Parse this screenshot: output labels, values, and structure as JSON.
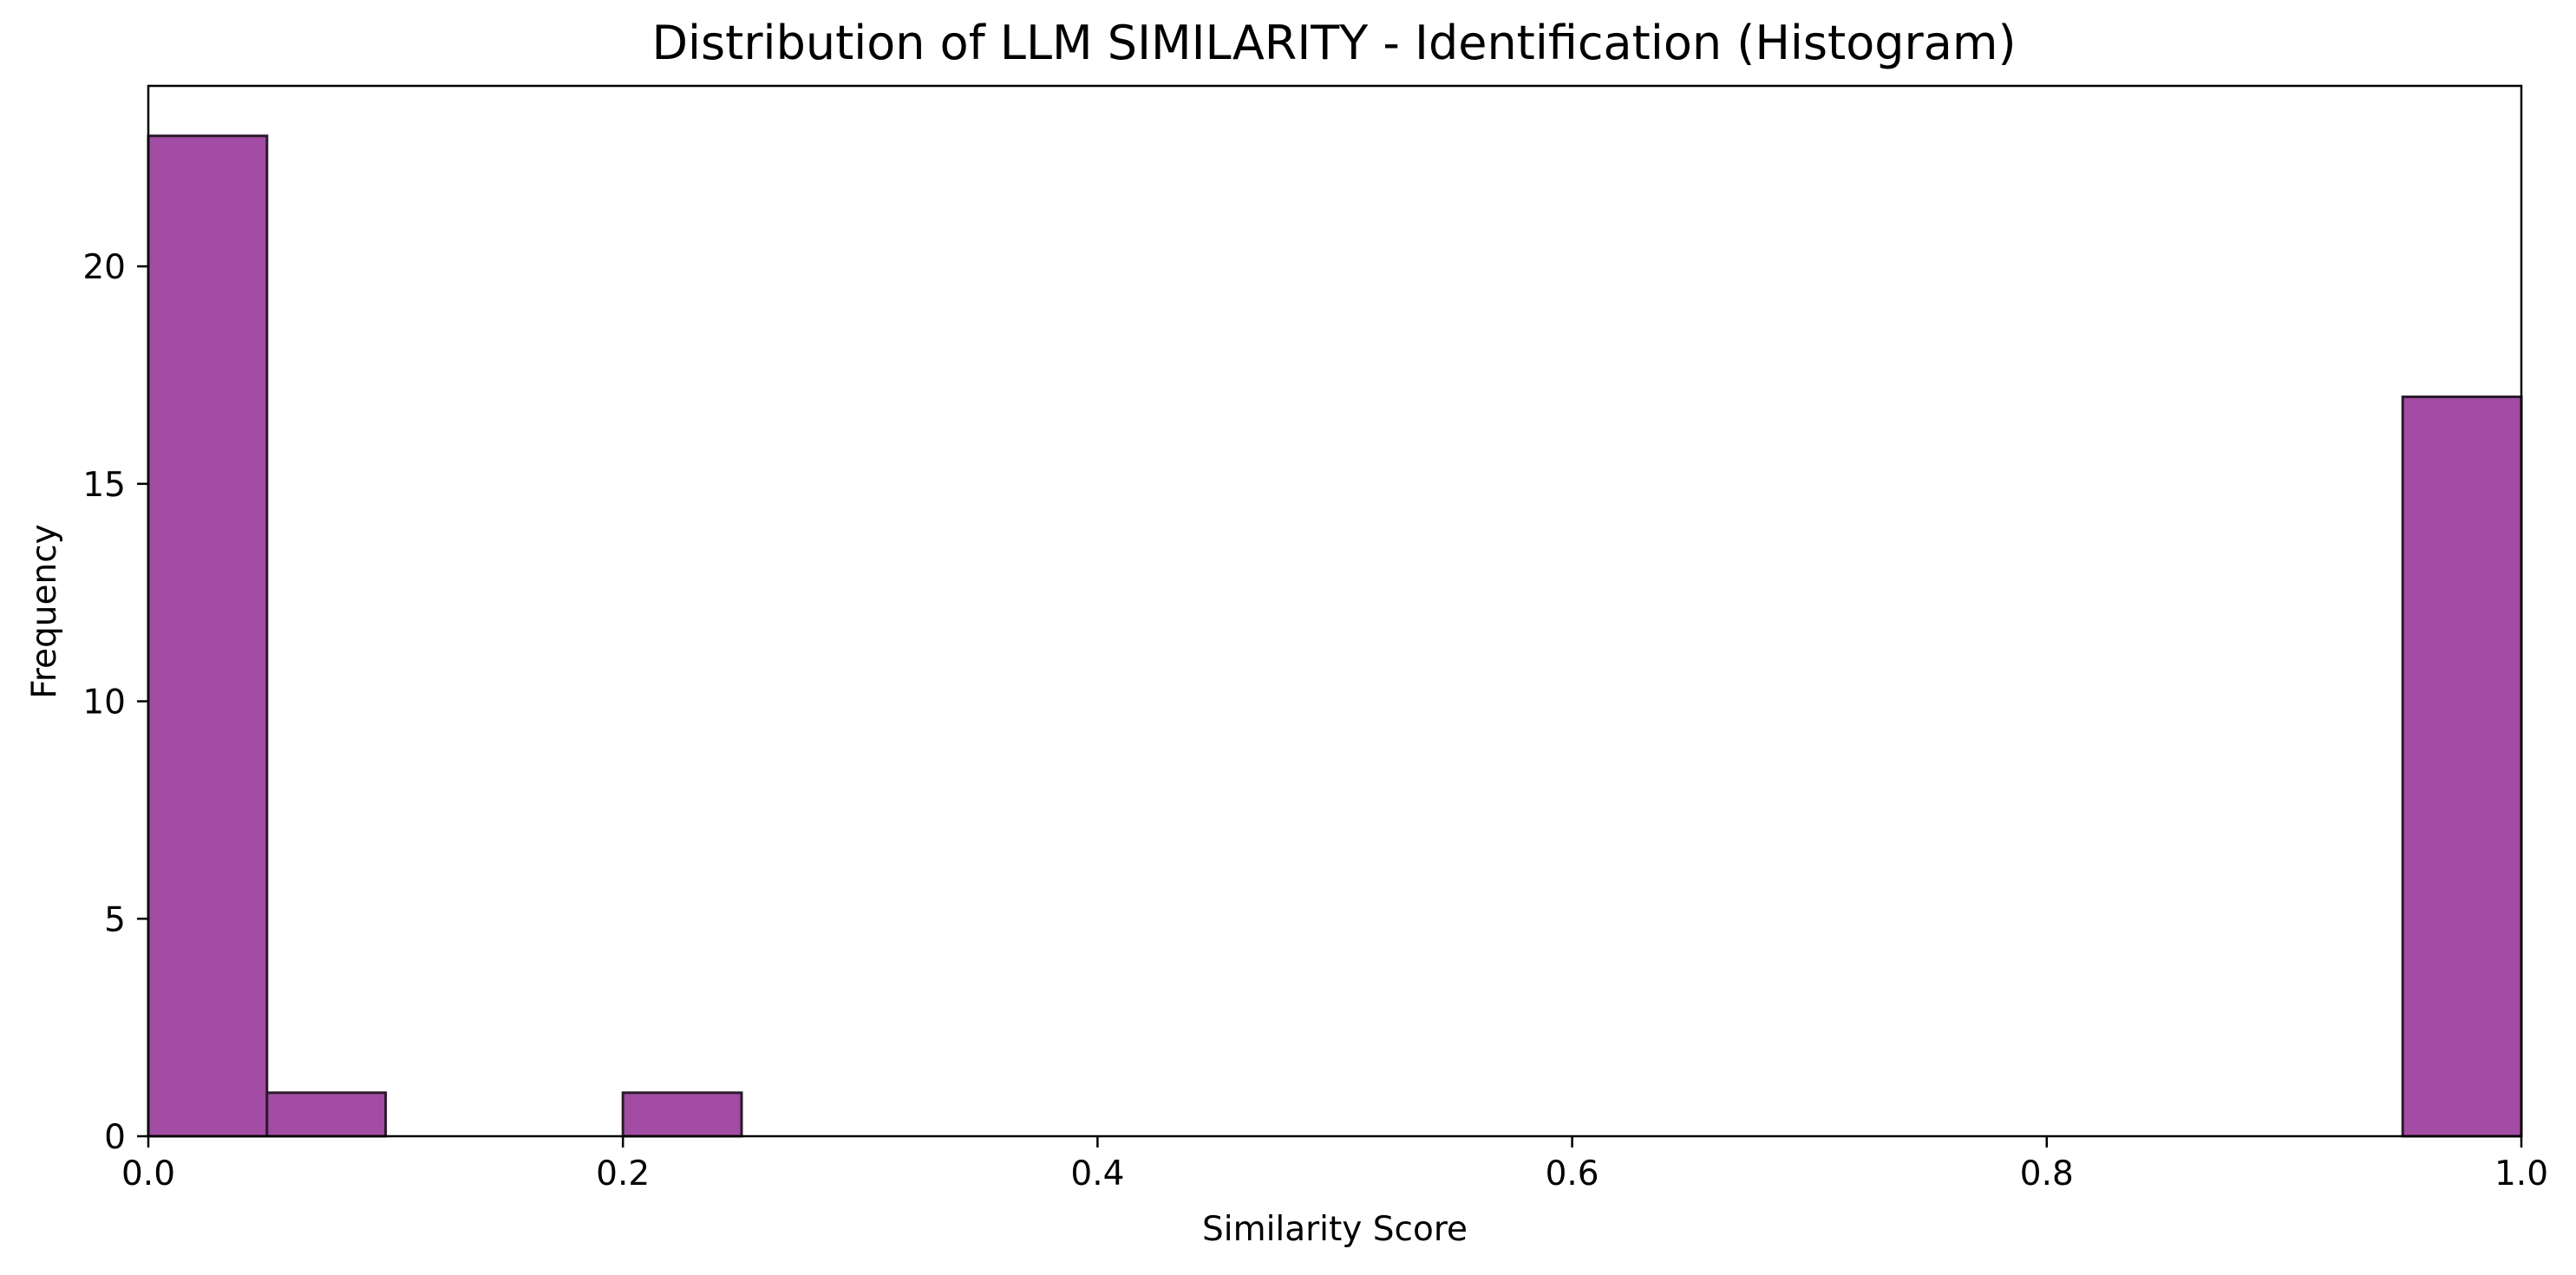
{
  "chart_data": {
    "type": "bar",
    "title": "Distribution of LLM SIMILARITY - Identification (Histogram)",
    "xlabel": "Similarity Score",
    "ylabel": "Frequency",
    "xlim": [
      0.0,
      1.0
    ],
    "ylim": [
      0,
      24.15
    ],
    "xticks": [
      0.0,
      0.2,
      0.4,
      0.6,
      0.8,
      1.0
    ],
    "xtick_labels": [
      "0.0",
      "0.2",
      "0.4",
      "0.6",
      "0.8",
      "1.0"
    ],
    "yticks": [
      0,
      5,
      10,
      15,
      20
    ],
    "ytick_labels": [
      "0",
      "5",
      "10",
      "15",
      "20"
    ],
    "bin_width": 0.05,
    "bins": [
      {
        "x0": 0.0,
        "x1": 0.05,
        "count": 23
      },
      {
        "x0": 0.05,
        "x1": 0.1,
        "count": 1
      },
      {
        "x0": 0.2,
        "x1": 0.25,
        "count": 1
      },
      {
        "x0": 0.95,
        "x1": 1.0,
        "count": 17
      }
    ],
    "bar_color": "#a34ca3",
    "edge_color": "#2b1a2b",
    "grid": false,
    "legend": "none"
  }
}
